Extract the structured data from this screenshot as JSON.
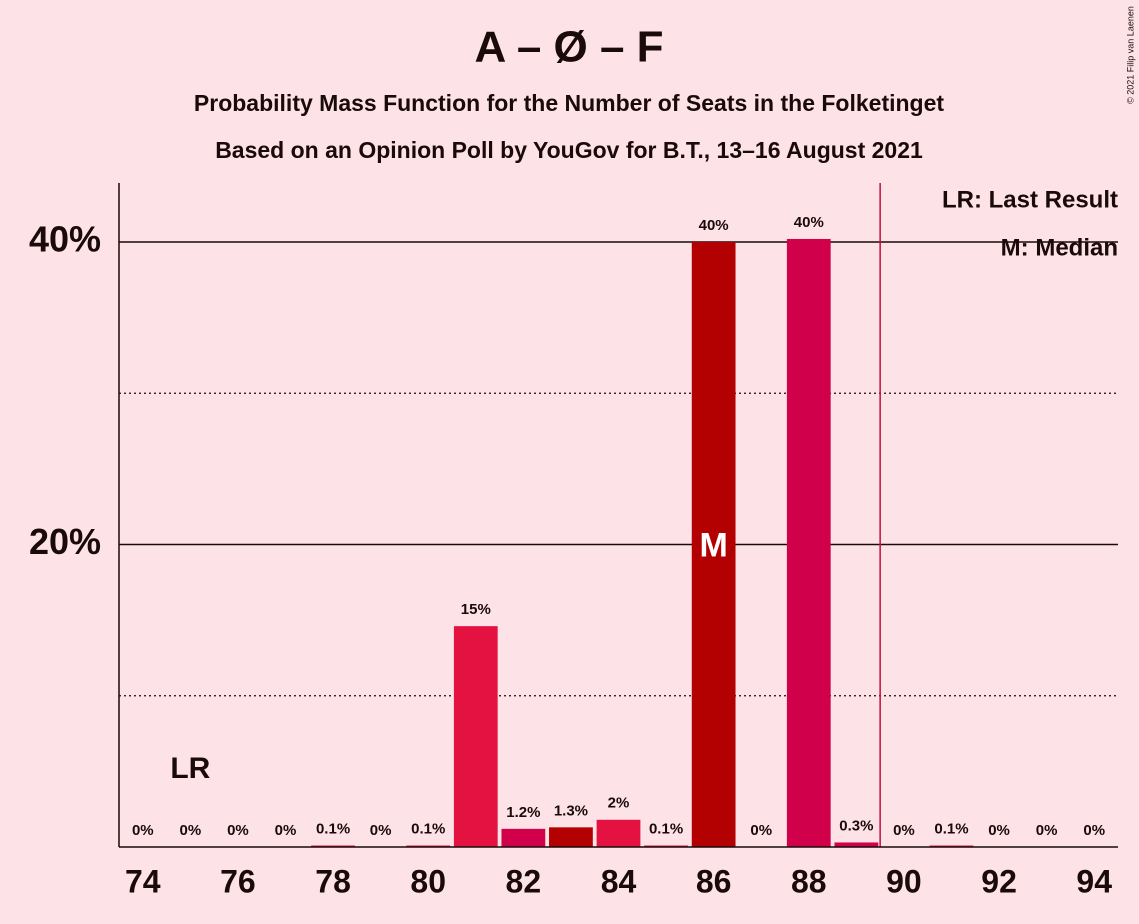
{
  "chart_data": {
    "type": "bar",
    "title": "A – Ø – F",
    "subtitle": "Probability Mass Function for the Number of Seats in the Folketinget",
    "subtitle2": "Based on an Opinion Poll by YouGov for B.T., 13–16 August 2021",
    "copyright": "© 2021 Filip van Laenen",
    "x": [
      74,
      75,
      76,
      77,
      78,
      79,
      80,
      81,
      82,
      83,
      84,
      85,
      86,
      87,
      88,
      89,
      90,
      91,
      92,
      93,
      94
    ],
    "values": [
      0,
      0,
      0,
      0,
      0.1,
      0,
      0.1,
      14.6,
      1.2,
      1.3,
      1.8,
      0.1,
      40.0,
      0,
      40.2,
      0.3,
      0,
      0.1,
      0,
      0,
      0
    ],
    "value_labels": [
      "0%",
      "0%",
      "0%",
      "0%",
      "0.1%",
      "0%",
      "0.1%",
      "15%",
      "1.2%",
      "1.3%",
      "2%",
      "0.1%",
      "40%",
      "0%",
      "40%",
      "0.3%",
      "0%",
      "0.1%",
      "0%",
      "0%",
      "0%"
    ],
    "colors": [
      "#e31240",
      "#e31240",
      "#e31240",
      "#e31240",
      "#e31240",
      "#e31240",
      "#e31240",
      "#e31240",
      "#d1004a",
      "#b30000",
      "#e31240",
      "#e31240",
      "#b30000",
      "#e31240",
      "#d1004a",
      "#d1004a",
      "#e31240",
      "#e31240",
      "#e31240",
      "#e31240",
      "#e31240"
    ],
    "xlim": [
      73.5,
      94.5
    ],
    "xticks": [
      74,
      76,
      78,
      80,
      82,
      84,
      86,
      88,
      90,
      92,
      94
    ],
    "ylim": [
      0,
      43.9
    ],
    "yticks": [
      {
        "value": 20,
        "label": "20%"
      },
      {
        "value": 40,
        "label": "40%"
      }
    ],
    "minor_yticks": [
      10,
      30
    ],
    "majority_line": 89.5,
    "last_result": {
      "label": "LR",
      "x": 75
    },
    "median": {
      "label": "M",
      "x": 86
    },
    "legend": [
      "LR: Last Result",
      "M: Median"
    ]
  }
}
